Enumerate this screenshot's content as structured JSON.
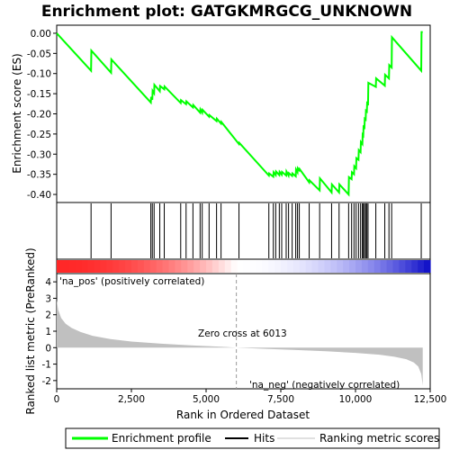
{
  "colors": {
    "profile": "#00ff00",
    "hits": "#000000",
    "metric_fill": "#c0c0c0",
    "pos_label": "#cc0000",
    "neg_label": "#0000cc",
    "frame": "#000000"
  },
  "chart_data": [
    {
      "type": "line",
      "title": "Enrichment plot: GATGKMRGCG_UNKNOWN",
      "ylabel": "Enrichment score (ES)",
      "xlim": [
        0,
        12500
      ],
      "ylim": [
        -0.42,
        0.02
      ],
      "yticks": [
        "0.00",
        "-0.05",
        "-0.10",
        "-0.15",
        "-0.20",
        "-0.25",
        "-0.30",
        "-0.35",
        "-0.40"
      ],
      "ytick_values": [
        0.0,
        -0.05,
        -0.1,
        -0.15,
        -0.2,
        -0.25,
        -0.3,
        -0.35,
        -0.4
      ],
      "series": [
        {
          "name": "Enrichment profile",
          "x": [
            0,
            1150,
            1160,
            1820,
            1830,
            3150,
            3160,
            3200,
            3210,
            3260,
            3270,
            3450,
            3460,
            3600,
            3610,
            4150,
            4160,
            4330,
            4340,
            4560,
            4570,
            4800,
            4810,
            4870,
            4880,
            5100,
            5110,
            5350,
            5360,
            5500,
            5510,
            6100,
            6110,
            7100,
            7110,
            7250,
            7260,
            7330,
            7340,
            7450,
            7460,
            7530,
            7540,
            7680,
            7690,
            7760,
            7770,
            7880,
            7890,
            8000,
            8010,
            8060,
            8070,
            8120,
            8130,
            8450,
            8460,
            8800,
            8810,
            9200,
            9210,
            9450,
            9460,
            9770,
            9780,
            9870,
            9880,
            9950,
            9960,
            10020,
            10030,
            10100,
            10110,
            10170,
            10180,
            10230,
            10240,
            10260,
            10270,
            10300,
            10310,
            10340,
            10350,
            10380,
            10390,
            10420,
            10430,
            10680,
            10690,
            10980,
            10990,
            11120,
            11130,
            11210,
            11220,
            12200,
            12210,
            12250
          ],
          "y": [
            0.0,
            -0.093,
            -0.043,
            -0.098,
            -0.065,
            -0.172,
            -0.158,
            -0.165,
            -0.143,
            -0.149,
            -0.128,
            -0.144,
            -0.131,
            -0.139,
            -0.132,
            -0.173,
            -0.166,
            -0.176,
            -0.169,
            -0.184,
            -0.178,
            -0.197,
            -0.189,
            -0.197,
            -0.19,
            -0.207,
            -0.203,
            -0.218,
            -0.212,
            -0.224,
            -0.22,
            -0.275,
            -0.272,
            -0.353,
            -0.348,
            -0.356,
            -0.345,
            -0.352,
            -0.343,
            -0.352,
            -0.344,
            -0.351,
            -0.344,
            -0.353,
            -0.343,
            -0.353,
            -0.347,
            -0.354,
            -0.348,
            -0.355,
            -0.338,
            -0.345,
            -0.335,
            -0.34,
            -0.337,
            -0.37,
            -0.365,
            -0.39,
            -0.36,
            -0.395,
            -0.375,
            -0.395,
            -0.375,
            -0.4,
            -0.357,
            -0.362,
            -0.345,
            -0.35,
            -0.33,
            -0.335,
            -0.31,
            -0.314,
            -0.29,
            -0.295,
            -0.27,
            -0.275,
            -0.252,
            -0.254,
            -0.232,
            -0.234,
            -0.212,
            -0.214,
            -0.192,
            -0.194,
            -0.173,
            -0.175,
            -0.123,
            -0.133,
            -0.112,
            -0.13,
            -0.103,
            -0.112,
            -0.079,
            -0.085,
            -0.01,
            -0.093,
            0.003,
            0.003
          ]
        }
      ]
    },
    {
      "type": "scatter",
      "title": "",
      "series": [
        {
          "name": "Hits",
          "x": [
            1150,
            1820,
            3150,
            3200,
            3260,
            3450,
            3600,
            4150,
            4330,
            4560,
            4800,
            4870,
            5100,
            5350,
            5500,
            6100,
            7100,
            7250,
            7330,
            7450,
            7530,
            7680,
            7760,
            7880,
            8000,
            8060,
            8120,
            8450,
            8800,
            9200,
            9450,
            9770,
            9870,
            9950,
            10020,
            10100,
            10170,
            10230,
            10260,
            10300,
            10340,
            10380,
            10420,
            10680,
            10980,
            11120,
            11210,
            12200
          ]
        }
      ]
    },
    {
      "type": "area",
      "title": "",
      "xlabel": "Rank in Ordered Dataset",
      "ylabel": "Ranked list metric (PreRanked)",
      "xlim": [
        0,
        12500
      ],
      "ylim": [
        -2.5,
        4.5
      ],
      "xticks": [
        "0",
        "2,500",
        "5,000",
        "7,500",
        "10,000",
        "12,500"
      ],
      "xtick_values": [
        0,
        2500,
        5000,
        7500,
        10000,
        12500
      ],
      "yticks": [
        "4",
        "3",
        "2",
        "1",
        "0",
        "-1",
        "-2"
      ],
      "ytick_values": [
        4,
        3,
        2,
        1,
        0,
        -1,
        -2
      ],
      "series": [
        {
          "name": "Ranking metric scores",
          "x": [
            0,
            50,
            150,
            300,
            500,
            800,
            1200,
            1800,
            2500,
            3500,
            4500,
            5500,
            6013,
            7000,
            8000,
            9000,
            10000,
            10800,
            11300,
            11700,
            11950,
            12100,
            12200,
            12250
          ],
          "y": [
            2.9,
            2.3,
            1.8,
            1.45,
            1.2,
            0.95,
            0.72,
            0.52,
            0.37,
            0.24,
            0.14,
            0.06,
            0.0,
            -0.07,
            -0.14,
            -0.22,
            -0.32,
            -0.43,
            -0.55,
            -0.7,
            -0.9,
            -1.15,
            -1.6,
            -2.3
          ]
        }
      ],
      "annotations": [
        "Zero cross at 6013",
        "'na_pos' (positively correlated)",
        "'na_neg' (negatively correlated)"
      ],
      "zero_cross": 6013
    }
  ],
  "legend": {
    "items": [
      "Enrichment profile",
      "Hits",
      "Ranking metric scores"
    ],
    "placement": "bottom"
  }
}
